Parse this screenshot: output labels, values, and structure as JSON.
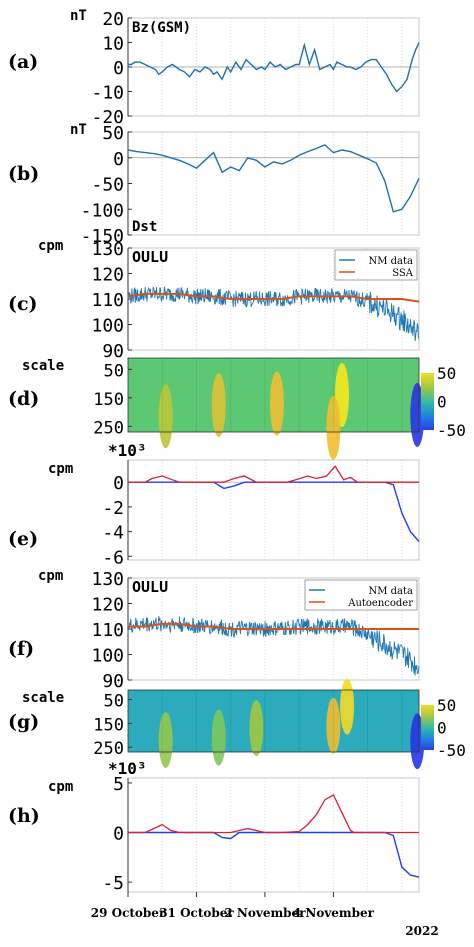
{
  "chart_data": [
    {
      "panel_label": "(a)",
      "type": "line",
      "ylabel": "nT",
      "title": "Bz(GSM)",
      "yticks": [
        20,
        10,
        0,
        -10,
        -20
      ],
      "ylim": [
        -20,
        20
      ],
      "x": [
        0,
        0.2,
        0.4,
        0.7,
        1.0,
        1.3,
        1.6,
        1.8,
        2.0,
        2.3,
        2.6,
        3.0,
        3.3,
        3.6,
        3.9,
        4.2,
        4.5,
        4.8,
        5.0,
        5.2,
        5.5,
        5.8,
        6.0,
        6.3,
        6.6,
        6.9,
        7.2,
        7.5,
        7.8,
        8.0,
        8.3,
        8.6,
        8.9,
        9.2,
        9.5,
        9.8,
        10.0,
        10.3,
        10.6,
        10.9,
        11.2,
        11.5,
        11.8,
        12.0,
        12.2,
        12.5,
        12.8,
        13.0,
        13.3,
        13.6,
        13.9,
        14.2,
        14.5,
        14.8,
        15.1,
        15.4,
        15.7,
        16.0,
        16.3,
        16.6,
        16.8,
        17.0
      ],
      "series": [
        {
          "values": [
            1,
            1,
            2,
            2,
            1,
            0,
            -1,
            -3,
            -2,
            0,
            1,
            -1,
            -2,
            -4,
            -1,
            -2,
            0,
            -1,
            -3,
            -2,
            -5,
            0,
            -2,
            2,
            -1,
            3,
            1,
            -1,
            0,
            -1,
            2,
            0,
            1,
            -1,
            0,
            1,
            1,
            9,
            1,
            7,
            -1,
            0,
            1,
            -1,
            2,
            1,
            0,
            0,
            -1,
            0,
            2,
            3,
            3,
            0,
            -3,
            -7,
            -10,
            -8,
            -5,
            3,
            7,
            10
          ],
          "color": "#1f6fb4"
        }
      ]
    },
    {
      "panel_label": "(b)",
      "type": "line",
      "ylabel": "nT",
      "title": "Dst",
      "yticks": [
        50,
        0,
        -50,
        -100,
        -150
      ],
      "ylim": [
        -150,
        50
      ],
      "x": [
        0,
        0.5,
        1.0,
        1.5,
        2.0,
        2.5,
        3.0,
        3.5,
        4.0,
        4.5,
        5.0,
        5.5,
        6.0,
        6.5,
        7.0,
        7.5,
        8.0,
        8.5,
        9.0,
        9.5,
        10.0,
        10.5,
        11.0,
        11.5,
        12.0,
        12.5,
        13.0,
        13.5,
        14.0,
        14.5,
        15.0,
        15.5,
        16.0,
        16.5,
        17.0
      ],
      "series": [
        {
          "values": [
            15,
            12,
            10,
            8,
            5,
            0,
            -5,
            -12,
            -20,
            -5,
            10,
            -28,
            -18,
            -25,
            0,
            -5,
            -18,
            -8,
            -12,
            -5,
            5,
            12,
            18,
            25,
            10,
            15,
            12,
            5,
            -2,
            -10,
            -45,
            -105,
            -100,
            -75,
            -40
          ],
          "color": "#1f6fb4"
        }
      ]
    },
    {
      "panel_label": "(c)",
      "type": "line",
      "station": "OULU",
      "ylabel": "cpm",
      "yticks": [
        130,
        120,
        110,
        100,
        90
      ],
      "ylim": [
        90,
        130
      ],
      "legend": [
        "NM data",
        "SSA"
      ],
      "legend_placement": "top-right",
      "x": [
        0,
        1,
        2,
        3,
        4,
        5,
        6,
        7,
        8,
        9,
        10,
        11,
        12,
        13,
        14,
        15,
        16,
        17
      ],
      "series": [
        {
          "name": "NM data",
          "values": [
            111,
            112,
            112,
            112,
            111,
            111,
            110,
            110,
            110,
            110,
            111,
            111,
            111,
            111,
            109,
            106,
            102,
            96
          ],
          "color": "#1f77b4"
        },
        {
          "name": "SSA",
          "values": [
            111,
            112,
            112,
            112,
            111,
            111,
            110,
            110,
            110,
            110,
            111,
            111,
            111,
            111,
            110,
            110,
            110,
            109
          ],
          "color": "#d95319"
        }
      ]
    },
    {
      "panel_label": "(d)",
      "type": "heatmap",
      "ylabel": "scale",
      "yticks": [
        50,
        150,
        250
      ],
      "colorbar_ticks": [
        50,
        0,
        -50
      ],
      "field_value": 12,
      "blobs": [
        {
          "day": 2.2,
          "scale": 215,
          "value": 30
        },
        {
          "day": 5.3,
          "scale": 175,
          "value": 38
        },
        {
          "day": 8.7,
          "scale": 170,
          "value": 42
        },
        {
          "day": 12.5,
          "scale": 140,
          "value": 55
        },
        {
          "day": 12.0,
          "scale": 255,
          "value": 42
        },
        {
          "day": 16.9,
          "scale": 210,
          "value": -55
        }
      ]
    },
    {
      "panel_label": "(e)",
      "type": "line",
      "ylabel": "cpm",
      "multiplier": "*10³",
      "yticks": [
        0,
        -2,
        -4,
        -6
      ],
      "ylim": [
        -6.3,
        1.8
      ],
      "x": [
        0,
        1,
        1.4,
        2.0,
        2.6,
        3.0,
        4.0,
        5.0,
        5.6,
        6.2,
        6.8,
        7.5,
        8.5,
        9.3,
        9.8,
        10.5,
        11.0,
        11.6,
        12.1,
        12.6,
        13.0,
        13.4,
        14.0,
        15.0,
        15.5,
        16.0,
        16.5,
        17.0
      ],
      "series": [
        {
          "values": [
            0,
            0,
            0,
            0,
            0,
            0,
            0,
            0,
            -0.5,
            -0.3,
            0,
            0,
            0,
            0,
            0,
            0,
            0,
            0,
            0,
            0,
            0,
            0,
            0,
            0,
            -0.2,
            -2.5,
            -4.0,
            -4.8
          ],
          "color": "#1f3fff"
        }
      ],
      "positive_color": "#e0202a",
      "positive_values": [
        0,
        0,
        0.3,
        0.5,
        0.2,
        0,
        0,
        0,
        0,
        0.3,
        0.5,
        0,
        0,
        0,
        0.2,
        0.5,
        0.3,
        0.5,
        1.3,
        0.2,
        0.4,
        0,
        0,
        0,
        0,
        0,
        0,
        0
      ]
    },
    {
      "panel_label": "(f)",
      "type": "line",
      "station": "OULU",
      "ylabel": "cpm",
      "yticks": [
        130,
        120,
        110,
        100,
        90
      ],
      "ylim": [
        90,
        130
      ],
      "legend": [
        "NM data",
        "Autoencoder"
      ],
      "legend_placement": "top-right",
      "x": [
        0,
        1,
        2,
        3,
        4,
        5,
        6,
        7,
        8,
        9,
        10,
        11,
        12,
        13,
        14,
        15,
        16,
        17
      ],
      "series": [
        {
          "name": "NM data",
          "values": [
            111,
            112,
            112,
            112,
            111,
            111,
            110,
            110,
            110,
            110,
            111,
            111,
            111,
            111,
            108,
            104,
            100,
            95
          ],
          "color": "#1f77b4"
        },
        {
          "name": "Autoencoder",
          "values": [
            111,
            111,
            112,
            112,
            111,
            111,
            110,
            110,
            110,
            110,
            110,
            110,
            110,
            110,
            110,
            110,
            110,
            110
          ],
          "color": "#d95319"
        }
      ]
    },
    {
      "panel_label": "(g)",
      "type": "heatmap",
      "ylabel": "scale",
      "yticks": [
        50,
        150,
        250
      ],
      "colorbar_ticks": [
        50,
        0,
        -50
      ],
      "field_value": -8,
      "blobs": [
        {
          "day": 2.2,
          "scale": 220,
          "value": 22
        },
        {
          "day": 5.3,
          "scale": 210,
          "value": 18
        },
        {
          "day": 7.5,
          "scale": 170,
          "value": 25
        },
        {
          "day": 12.0,
          "scale": 160,
          "value": 42
        },
        {
          "day": 12.8,
          "scale": 80,
          "value": 50
        },
        {
          "day": 16.9,
          "scale": 225,
          "value": -55
        }
      ]
    },
    {
      "panel_label": "(h)",
      "type": "line",
      "ylabel": "cpm",
      "multiplier": "*10³",
      "yticks": [
        5,
        0,
        -5
      ],
      "ylim": [
        -6,
        5.5
      ],
      "x": [
        0,
        1,
        1.5,
        2.0,
        2.5,
        3.0,
        4.0,
        5.0,
        5.5,
        6.0,
        6.5,
        7.0,
        7.5,
        8.0,
        9.0,
        10.0,
        10.5,
        11.0,
        11.5,
        12.0,
        12.5,
        13.0,
        13.2,
        13.5,
        14.0,
        15.0,
        15.5,
        16.0,
        16.5,
        17.0
      ],
      "series": [
        {
          "values": [
            0,
            0,
            0,
            0,
            0,
            0,
            0,
            0,
            -0.5,
            -0.6,
            0,
            0,
            0,
            0,
            0,
            0,
            0,
            0,
            0,
            0,
            0,
            0,
            0,
            0,
            0,
            0,
            -0.3,
            -3.5,
            -4.3,
            -4.5
          ],
          "color": "#1f3fff"
        }
      ],
      "positive_color": "#e0202a",
      "positive_values": [
        0,
        0,
        0.4,
        0.8,
        0.2,
        0,
        0,
        0,
        0,
        0,
        0.2,
        0.4,
        0.2,
        0,
        0,
        0.1,
        0.8,
        1.8,
        3.3,
        3.8,
        2.0,
        0.2,
        0,
        0,
        0,
        0,
        0,
        0,
        0,
        0
      ]
    }
  ],
  "x_axis": {
    "range": [
      0,
      17
    ],
    "ticks": [
      {
        "day": 0,
        "label": "29 October"
      },
      {
        "day": 4,
        "label": "31 October"
      },
      {
        "day": 8,
        "label": "2 November"
      },
      {
        "day": 12,
        "label": "4 November"
      }
    ],
    "year_label": "2022",
    "grid_days": [
      2,
      4,
      6,
      8,
      10,
      12,
      14,
      16
    ]
  }
}
